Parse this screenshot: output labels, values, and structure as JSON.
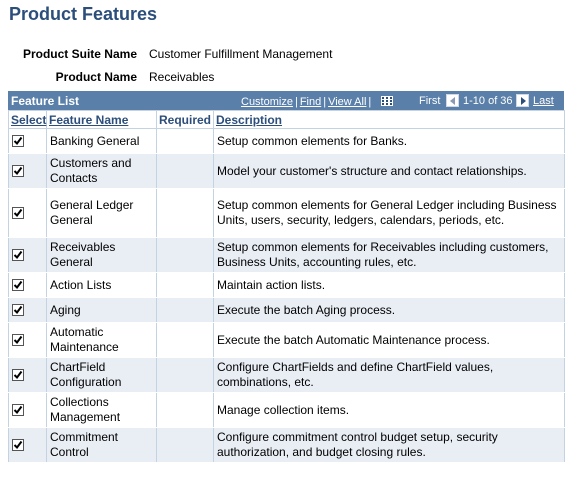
{
  "page": {
    "title": "Product Features"
  },
  "fields": {
    "suite": {
      "label": "Product Suite Name",
      "value": "Customer Fulfillment Management"
    },
    "product": {
      "label": "Product Name",
      "value": "Receivables"
    }
  },
  "grid": {
    "title": "Feature List",
    "tools": {
      "customize": "Customize",
      "find": "Find",
      "view_all": "View All"
    },
    "nav": {
      "first": "First",
      "range": "1-10 of 36",
      "last": "Last"
    },
    "columns": {
      "select": "Select",
      "name": "Feature Name",
      "required": "Required",
      "description": "Description"
    },
    "rows": [
      {
        "name": "Banking General",
        "description": "Setup common elements for Banks.",
        "checked": true
      },
      {
        "name": "Customers and Contacts",
        "description": "Model your customer's structure and contact relationships.",
        "checked": true
      },
      {
        "name": "General Ledger General",
        "description": "Setup common elements for General Ledger including Business Units, users, security, ledgers, calendars, periods, etc.",
        "checked": true
      },
      {
        "name": "Receivables General",
        "description": "Setup common elements for Receivables including customers, Business Units, accounting rules, etc.",
        "checked": true
      },
      {
        "name": "Action Lists",
        "description": "Maintain action lists.",
        "checked": true
      },
      {
        "name": "Aging",
        "description": "Execute the batch Aging process.",
        "checked": true
      },
      {
        "name": "Automatic Maintenance",
        "description": "Execute the batch Automatic Maintenance process.",
        "checked": true
      },
      {
        "name": "ChartField Configuration",
        "description": "Configure ChartFields and define ChartField values, combinations, etc.",
        "checked": true
      },
      {
        "name": "Collections Management",
        "description": "Manage collection items.",
        "checked": true
      },
      {
        "name": "Commitment Control",
        "description": "Configure commitment control budget setup, security authorization, and budget closing rules.",
        "checked": true
      }
    ]
  }
}
